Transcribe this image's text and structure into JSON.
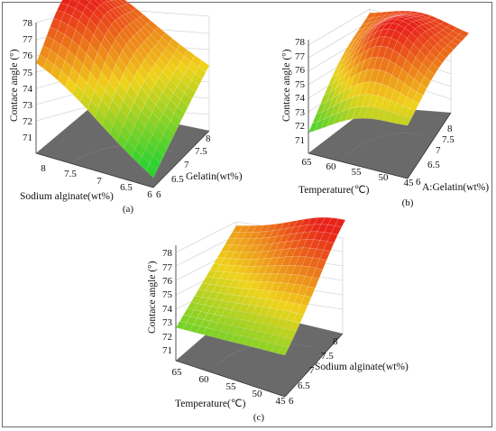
{
  "chart_data": [
    {
      "type": "surface",
      "panel": "(a)",
      "xlabel": "Sodium alginate(wt%)",
      "ylabel": "Gelatin(wt%)",
      "zlabel": "Contace angle (°)",
      "x_ticks": [
        "8",
        "7.5",
        "7",
        "6.5",
        "6"
      ],
      "y_ticks": [
        "6",
        "6.5",
        "7",
        "7.5",
        "8"
      ],
      "z_ticks": [
        "71",
        "72",
        "73",
        "74",
        "75",
        "76",
        "77",
        "78"
      ],
      "xlim": [
        6,
        8
      ],
      "ylim": [
        6,
        8
      ],
      "zlim": [
        71,
        78
      ],
      "corner_values": {
        "x8_y6": 75.3,
        "x6_y6": 71.5,
        "x8_y8": 77.2,
        "x6_y8": 75.0
      },
      "peak": {
        "x": 7.6,
        "y": 7.0,
        "z": 77.9
      }
    },
    {
      "type": "surface",
      "panel": "(b)",
      "xlabel": "Temperature(℃)",
      "ylabel": "A:Gelatin(wt%)",
      "zlabel": "Contace angle (°)",
      "x_ticks": [
        "65",
        "60",
        "55",
        "50",
        "45"
      ],
      "y_ticks": [
        "6",
        "6.5",
        "7",
        "7.5",
        "8"
      ],
      "z_ticks": [
        "71",
        "72",
        "73",
        "74",
        "75",
        "76",
        "77",
        "78"
      ],
      "xlim": [
        45,
        65
      ],
      "ylim": [
        6,
        8
      ],
      "zlim": [
        71,
        78
      ],
      "corner_values": {
        "x65_y6": 72.0,
        "x45_y6": 74.0,
        "x65_y8": 76.5,
        "x45_y8": 76.8
      },
      "peak": {
        "x": 55,
        "y": 7.0,
        "z": 78.0
      }
    },
    {
      "type": "surface",
      "panel": "(c)",
      "xlabel": "Temperature(℃)",
      "ylabel": "Sodium alginate(wt%)",
      "zlabel": "Contace angle (°)",
      "x_ticks": [
        "65",
        "60",
        "55",
        "50",
        "45"
      ],
      "y_ticks": [
        "6",
        "6.5",
        "7",
        "7.5",
        "8"
      ],
      "z_ticks": [
        "71",
        "72",
        "73",
        "74",
        "75",
        "76",
        "77",
        "78"
      ],
      "xlim": [
        45,
        65
      ],
      "ylim": [
        6,
        8
      ],
      "zlim": [
        71,
        78
      ],
      "corner_values": {
        "x65_y6": 73.0,
        "x45_y6": 73.5,
        "x65_y8": 76.0,
        "x45_y8": 77.8
      },
      "peak": {
        "x": 48,
        "y": 7.8,
        "z": 78.0
      }
    }
  ],
  "colors": {
    "high": "#e8231a",
    "mid": "#f0d21a",
    "low": "#2fd22f",
    "floor": "#6a6a6a"
  }
}
